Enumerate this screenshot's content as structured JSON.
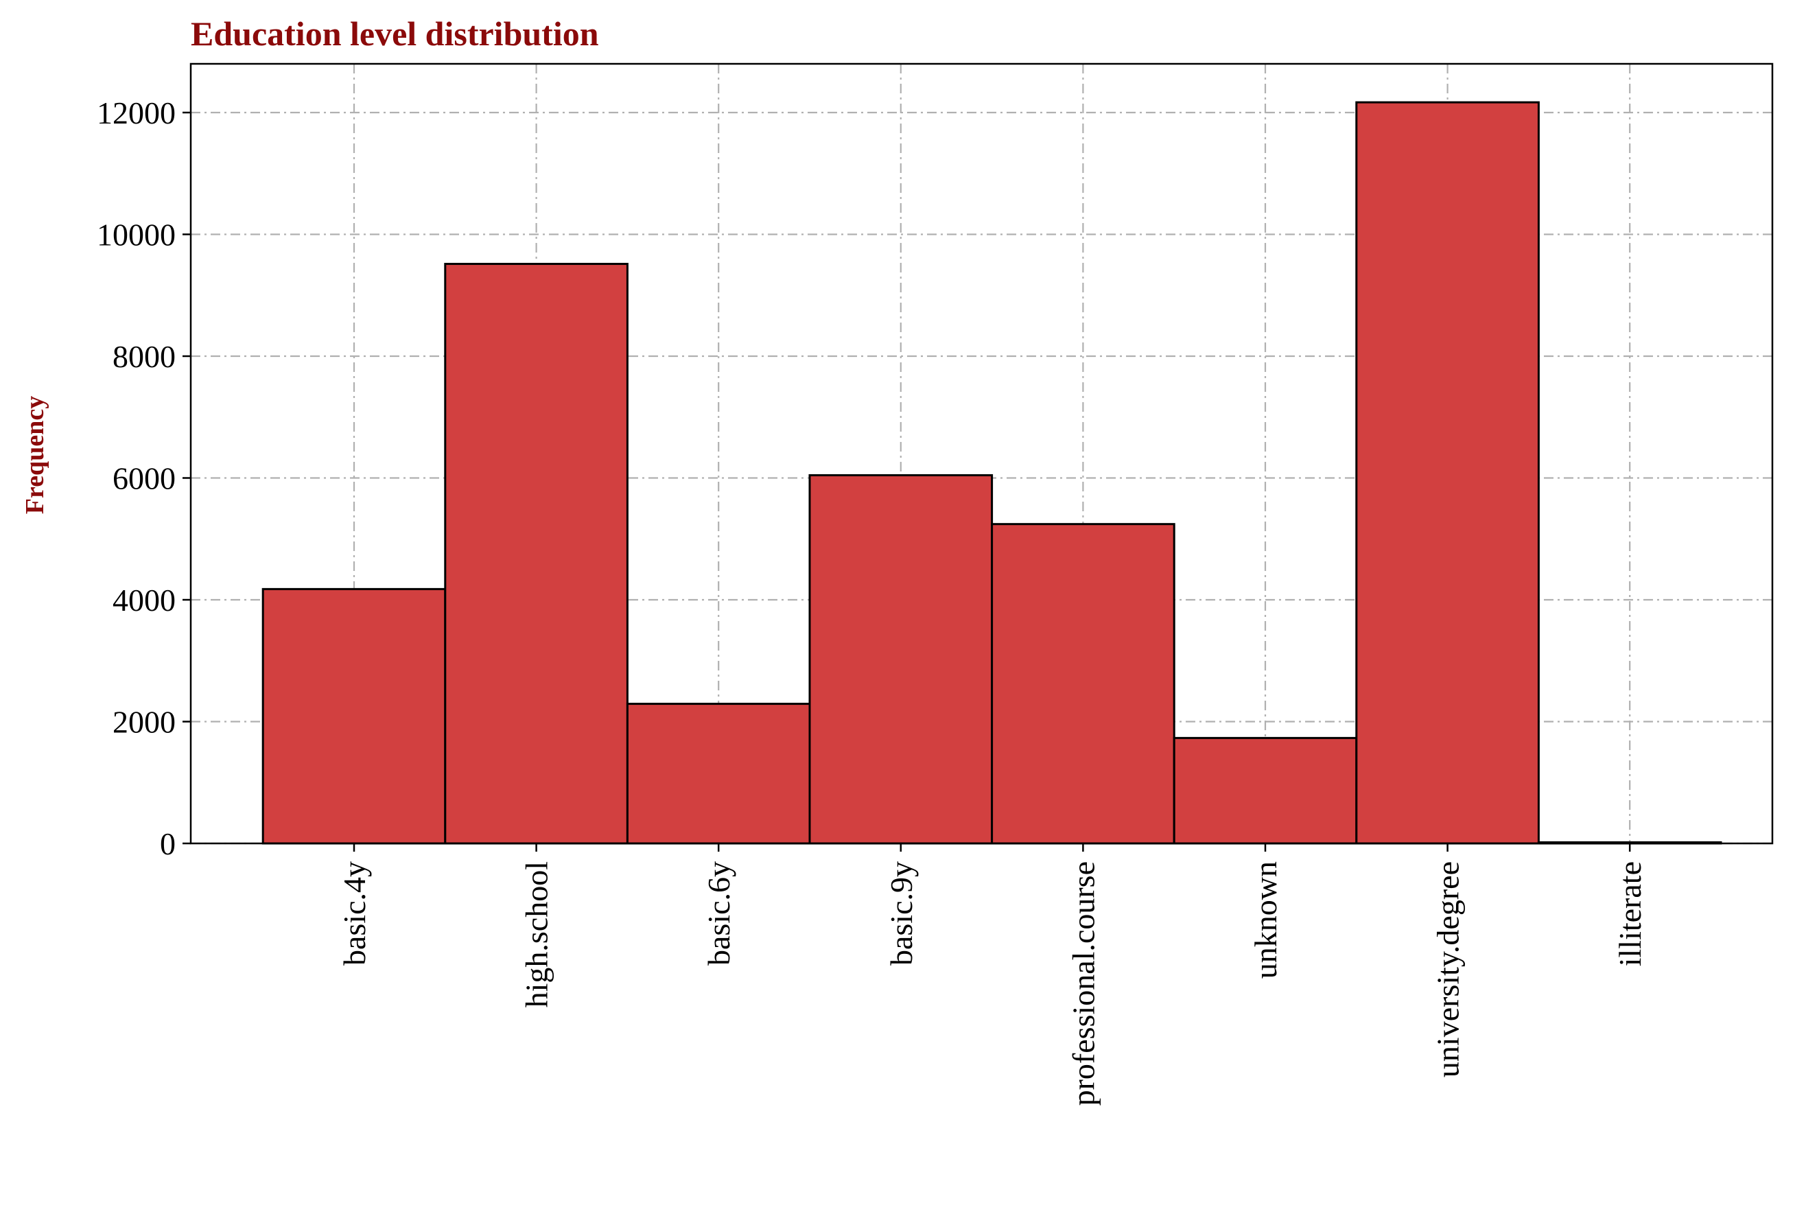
{
  "chart_data": {
    "type": "bar",
    "title": "Education level distribution",
    "xlabel": "",
    "ylabel": "Frequency",
    "categories": [
      "basic.4y",
      "high.school",
      "basic.6y",
      "basic.9y",
      "professional.course",
      "unknown",
      "university.degree",
      "illiterate"
    ],
    "values": [
      4176,
      9515,
      2292,
      6045,
      5243,
      1731,
      12168,
      18
    ],
    "ylim": [
      0,
      12800
    ],
    "yticks": [
      0,
      2000,
      4000,
      6000,
      8000,
      10000,
      12000
    ],
    "grid": true,
    "legend": "none"
  },
  "colors": {
    "bar_fill": "#d24040",
    "bar_edge": "#000000",
    "title": "#8b0a0a",
    "ylabel": "#8b0a0a",
    "grid": "#b0b0b0"
  }
}
